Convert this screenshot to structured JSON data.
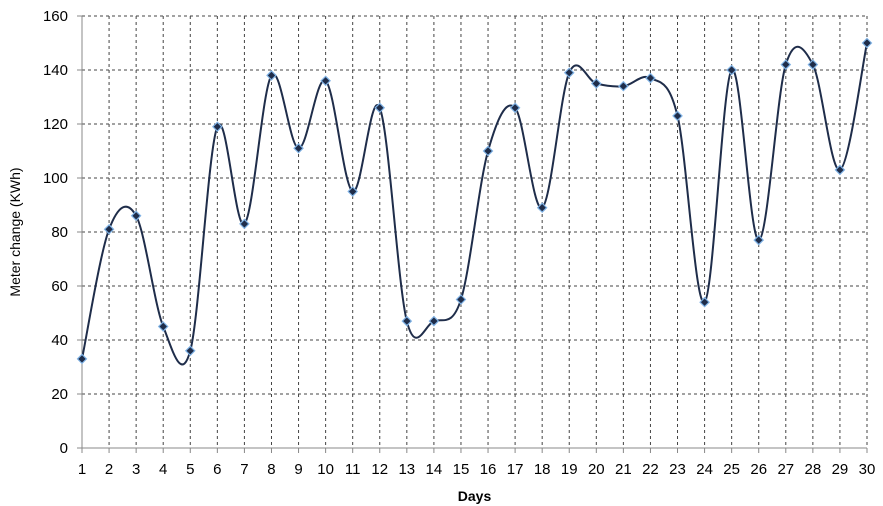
{
  "chart_data": {
    "type": "line",
    "title": "",
    "xlabel": "Days",
    "ylabel": "Meter change (KWh)",
    "ylim": [
      0,
      160
    ],
    "yticks": [
      0,
      20,
      40,
      60,
      80,
      100,
      120,
      140,
      160
    ],
    "grid": true,
    "smooth": true,
    "colors": {
      "line": "#1f2d4a",
      "marker": "#1f2d4a",
      "marker_highlight": "#7fb2e5",
      "grid": "#444444",
      "axis": "#888888"
    },
    "x": [
      1,
      2,
      3,
      4,
      5,
      6,
      7,
      8,
      9,
      10,
      11,
      12,
      13,
      14,
      15,
      16,
      17,
      18,
      19,
      20,
      21,
      22,
      23,
      24,
      25,
      26,
      27,
      28,
      29,
      30
    ],
    "series": [
      {
        "values": [
          33,
          81,
          86,
          45,
          36,
          119,
          83,
          138,
          111,
          136,
          95,
          126,
          47,
          47,
          55,
          110,
          126,
          89,
          139,
          135,
          134,
          137,
          123,
          54,
          140,
          77,
          142,
          142,
          103,
          150
        ]
      }
    ]
  }
}
